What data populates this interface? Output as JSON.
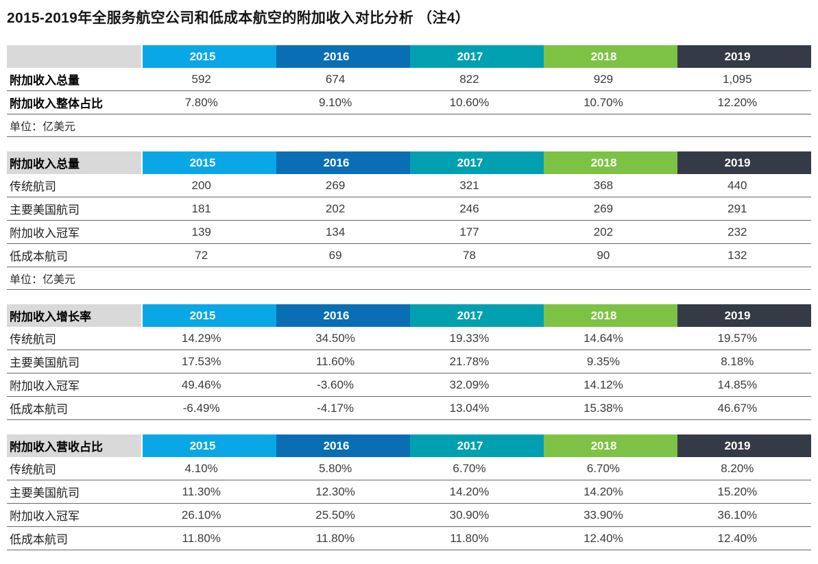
{
  "title": "2015-2019年全服务航空公司和低成本航空的附加收入对比分析 （注4）",
  "years": [
    "2015",
    "2016",
    "2017",
    "2018",
    "2019"
  ],
  "colors": {
    "year_header_backgrounds": [
      "#09A7E5",
      "#0A6EB4",
      "#00A0B0",
      "#7DC244",
      "#343A46"
    ],
    "year_header_text": "#FFFFFF",
    "label_header_background": "#D9D9D9",
    "row_divider": "#666666"
  },
  "tables": [
    {
      "header_label": "",
      "rows": [
        {
          "label": "附加收入总量",
          "values": [
            "592",
            "674",
            "822",
            "929",
            "1,095"
          ]
        },
        {
          "label": "附加收入整体占比",
          "values": [
            "7.80%",
            "9.10%",
            "10.60%",
            "10.70%",
            "12.20%"
          ]
        }
      ],
      "unit": "单位：亿美元"
    },
    {
      "header_label": "附加收入总量",
      "rows": [
        {
          "label": "传统航司",
          "values": [
            "200",
            "269",
            "321",
            "368",
            "440"
          ]
        },
        {
          "label": "主要美国航司",
          "values": [
            "181",
            "202",
            "246",
            "269",
            "291"
          ]
        },
        {
          "label": "附加收入冠军",
          "values": [
            "139",
            "134",
            "177",
            "202",
            "232"
          ]
        },
        {
          "label": "低成本航司",
          "values": [
            "72",
            "69",
            "78",
            "90",
            "132"
          ]
        }
      ],
      "unit": "单位：亿美元"
    },
    {
      "header_label": "附加收入增长率",
      "rows": [
        {
          "label": "传统航司",
          "values": [
            "14.29%",
            "34.50%",
            "19.33%",
            "14.64%",
            "19.57%"
          ]
        },
        {
          "label": "主要美国航司",
          "values": [
            "17.53%",
            "11.60%",
            "21.78%",
            "9.35%",
            "8.18%"
          ]
        },
        {
          "label": "附加收入冠军",
          "values": [
            "49.46%",
            "-3.60%",
            "32.09%",
            "14.12%",
            "14.85%"
          ]
        },
        {
          "label": "低成本航司",
          "values": [
            "-6.49%",
            "-4.17%",
            "13.04%",
            "15.38%",
            "46.67%"
          ]
        }
      ],
      "unit": ""
    },
    {
      "header_label": "附加收入营收占比",
      "rows": [
        {
          "label": "传统航司",
          "values": [
            "4.10%",
            "5.80%",
            "6.70%",
            "6.70%",
            "8.20%"
          ]
        },
        {
          "label": "主要美国航司",
          "values": [
            "11.30%",
            "12.30%",
            "14.20%",
            "14.20%",
            "15.20%"
          ]
        },
        {
          "label": "附加收入冠军",
          "values": [
            "26.10%",
            "25.50%",
            "30.90%",
            "33.90%",
            "36.10%"
          ]
        },
        {
          "label": "低成本航司",
          "values": [
            "11.80%",
            "11.80%",
            "11.80%",
            "12.40%",
            "12.40%"
          ]
        }
      ],
      "unit": ""
    }
  ],
  "chart_data": [
    {
      "type": "table",
      "title": "附加收入总量 / 附加收入整体占比",
      "categories": [
        "2015",
        "2016",
        "2017",
        "2018",
        "2019"
      ],
      "series": [
        {
          "name": "附加收入总量",
          "values": [
            592,
            674,
            822,
            929,
            1095
          ]
        },
        {
          "name": "附加收入整体占比(%)",
          "values": [
            7.8,
            9.1,
            10.6,
            10.7,
            12.2
          ]
        }
      ],
      "unit": "亿美元"
    },
    {
      "type": "table",
      "title": "附加收入总量",
      "categories": [
        "2015",
        "2016",
        "2017",
        "2018",
        "2019"
      ],
      "series": [
        {
          "name": "传统航司",
          "values": [
            200,
            269,
            321,
            368,
            440
          ]
        },
        {
          "name": "主要美国航司",
          "values": [
            181,
            202,
            246,
            269,
            291
          ]
        },
        {
          "name": "附加收入冠军",
          "values": [
            139,
            134,
            177,
            202,
            232
          ]
        },
        {
          "name": "低成本航司",
          "values": [
            72,
            69,
            78,
            90,
            132
          ]
        }
      ],
      "unit": "亿美元"
    },
    {
      "type": "table",
      "title": "附加收入增长率",
      "categories": [
        "2015",
        "2016",
        "2017",
        "2018",
        "2019"
      ],
      "series": [
        {
          "name": "传统航司",
          "values": [
            14.29,
            34.5,
            19.33,
            14.64,
            19.57
          ]
        },
        {
          "name": "主要美国航司",
          "values": [
            17.53,
            11.6,
            21.78,
            9.35,
            8.18
          ]
        },
        {
          "name": "附加收入冠军",
          "values": [
            49.46,
            -3.6,
            32.09,
            14.12,
            14.85
          ]
        },
        {
          "name": "低成本航司",
          "values": [
            -6.49,
            -4.17,
            13.04,
            15.38,
            46.67
          ]
        }
      ],
      "unit": "%"
    },
    {
      "type": "table",
      "title": "附加收入营收占比",
      "categories": [
        "2015",
        "2016",
        "2017",
        "2018",
        "2019"
      ],
      "series": [
        {
          "name": "传统航司",
          "values": [
            4.1,
            5.8,
            6.7,
            6.7,
            8.2
          ]
        },
        {
          "name": "主要美国航司",
          "values": [
            11.3,
            12.3,
            14.2,
            14.2,
            15.2
          ]
        },
        {
          "name": "附加收入冠军",
          "values": [
            26.1,
            25.5,
            30.9,
            33.9,
            36.1
          ]
        },
        {
          "name": "低成本航司",
          "values": [
            11.8,
            11.8,
            11.8,
            12.4,
            12.4
          ]
        }
      ],
      "unit": "%"
    }
  ]
}
